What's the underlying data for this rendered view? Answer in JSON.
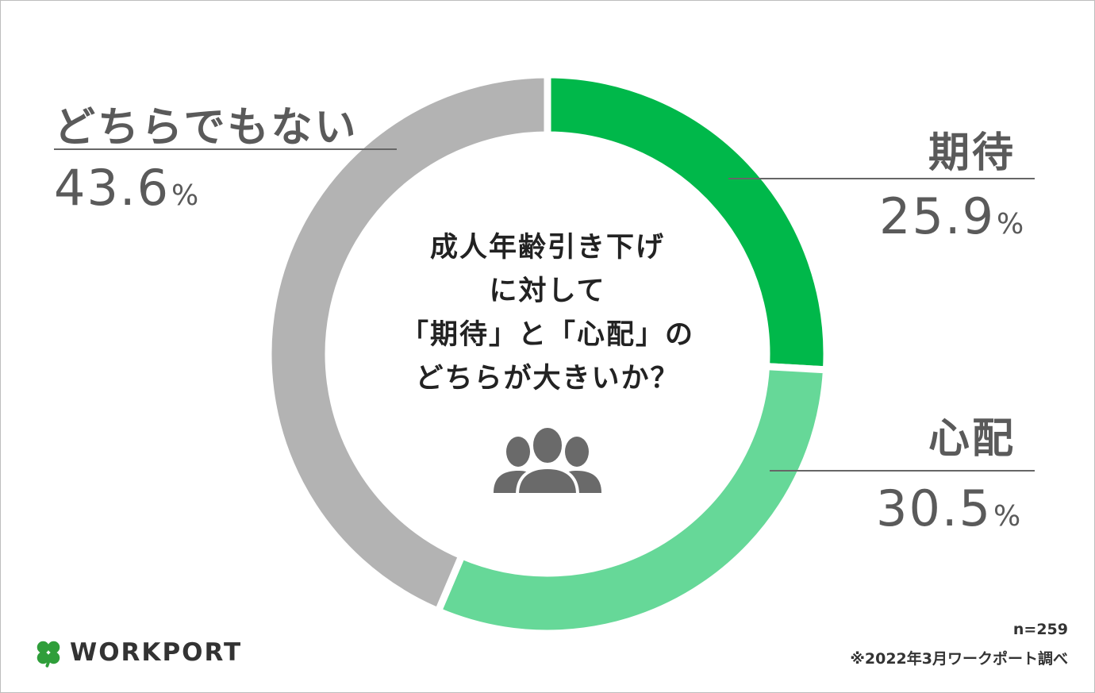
{
  "chart_data": {
    "type": "pie",
    "variant": "donut",
    "title": "成人年齢引き下げに対して「期待」と「心配」のどちらが大きいか？",
    "title_lines": [
      "成人年齢引き下げ",
      "に対して",
      "「期待」と「心配」の",
      "どちらが大きいか？"
    ],
    "slices": [
      {
        "name": "期待",
        "value": 25.9,
        "value_label": "25.9",
        "color": "#00b84a"
      },
      {
        "name": "心配",
        "value": 30.5,
        "value_label": "30.5",
        "color": "#66d898"
      },
      {
        "name": "どちらでもない",
        "value": 43.6,
        "value_label": "43.6",
        "color": "#b3b3b3"
      }
    ],
    "unit": "%",
    "sample_note": "n=259",
    "source_note": "※2022年3月ワークポート調べ"
  },
  "brand": {
    "name": "WORKPORT",
    "logo_icon": "clover-icon",
    "logo_color": "#2f9e3a"
  },
  "icons": {
    "center": "people-group-icon",
    "color": "#6a6a6a"
  }
}
